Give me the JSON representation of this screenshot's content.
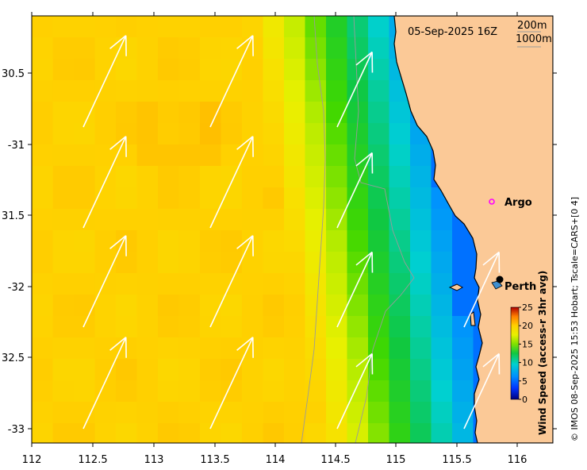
{
  "map": {
    "title": "05-Sep-2025 16Z",
    "legend_depths": [
      "200m",
      "1000m"
    ],
    "credit": "© IMOS 08-Sep-2025 15:53 Hobart; Tscale=CARS+[0 4]",
    "lon_range": [
      112,
      116.3
    ],
    "lat_range": [
      -33.1,
      -30.05
    ],
    "lon_ticks": [
      "112",
      "112.5",
      "113",
      "113.5",
      "114",
      "114.5",
      "115",
      "115.5",
      "116"
    ],
    "lat_ticks": [
      "30.5",
      "-31",
      "31.5",
      "-32",
      "32.5",
      "-33"
    ],
    "places": [
      {
        "name": "Argo",
        "marker": "magenta-ring",
        "lon": 115.84,
        "lat": -31.45
      },
      {
        "name": "Perth",
        "marker": "black-dot",
        "lon": 115.86,
        "lat": -31.95
      }
    ],
    "colorbar": {
      "label": "Wind Speed (access-r 3hr avg)",
      "ticks": [
        "25",
        "20",
        "15",
        "10",
        "5",
        "0"
      ],
      "range": [
        0,
        25
      ]
    },
    "colors": {
      "land": "#fbc997",
      "isobath": "#9a9a9a",
      "arrow": "#ffffff",
      "argo_marker": "#ff00ff"
    },
    "wind_field_note_values_ms": {
      "offshore_max": 21,
      "coastal_min": 5
    }
  }
}
